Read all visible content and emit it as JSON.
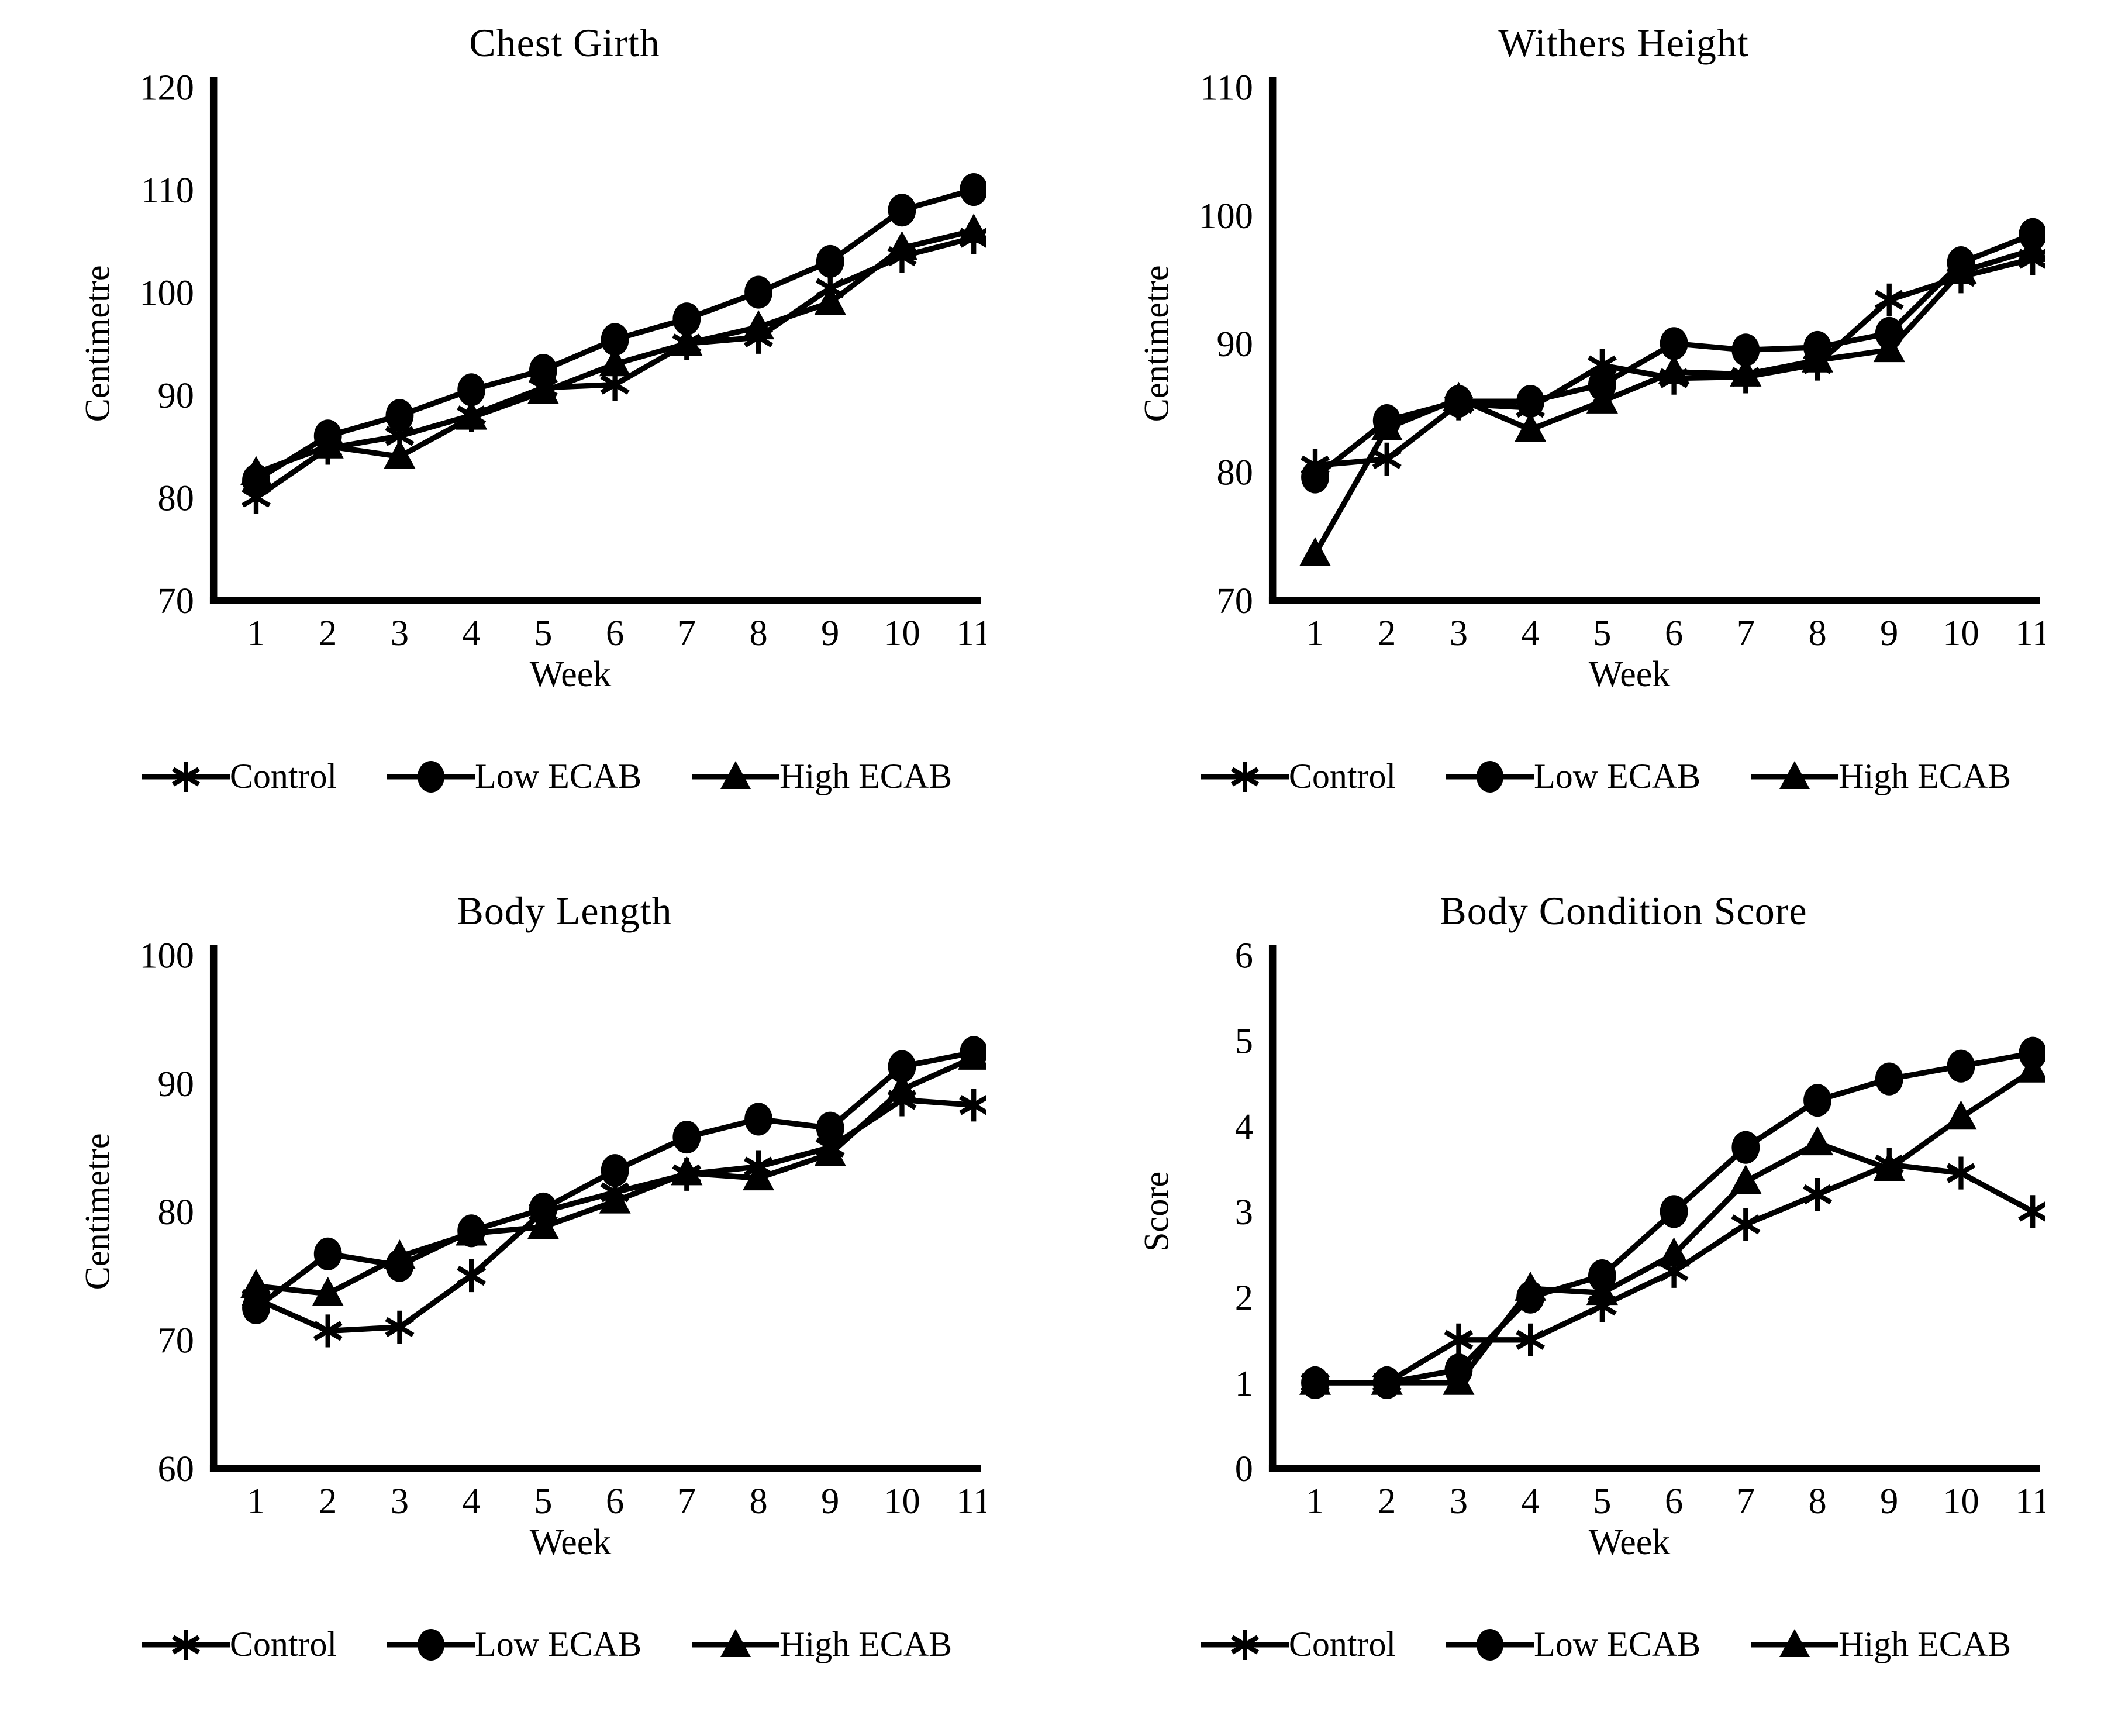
{
  "figure": {
    "background_color": "#ffffff",
    "ink_color": "#000000",
    "layout": "2x2 grid of line charts",
    "week_axis_label": "Week"
  },
  "legend": {
    "items": [
      {
        "label": "Control",
        "marker": "asterisk"
      },
      {
        "label": "Low ECAB",
        "marker": "circle"
      },
      {
        "label": "High ECAB",
        "marker": "triangle"
      }
    ]
  },
  "chart_data": [
    {
      "type": "line",
      "title": "Chest Girth",
      "xlabel": "Week",
      "ylabel": "Centimetre",
      "x": [
        1,
        2,
        3,
        4,
        5,
        6,
        7,
        8,
        9,
        10,
        11
      ],
      "ylim": [
        70,
        120
      ],
      "yticks": [
        70,
        80,
        90,
        100,
        110,
        120
      ],
      "grid": false,
      "legend_position": "bottom",
      "series": [
        {
          "name": "Control",
          "marker": "asterisk",
          "values": [
            80.0,
            84.8,
            86.0,
            88.0,
            90.7,
            91.0,
            95.0,
            95.6,
            100.4,
            103.5,
            105.3
          ]
        },
        {
          "name": "Low ECAB",
          "marker": "circle",
          "values": [
            81.7,
            86.0,
            88.0,
            90.5,
            92.4,
            95.4,
            97.4,
            100.0,
            103.0,
            108.0,
            110.0
          ]
        },
        {
          "name": "High ECAB",
          "marker": "triangle",
          "values": [
            82.4,
            85.0,
            84.0,
            87.8,
            90.3,
            93.0,
            95.0,
            96.6,
            99.0,
            104.3,
            106.0
          ]
        }
      ]
    },
    {
      "type": "line",
      "title": "Withers Height",
      "xlabel": "Week",
      "ylabel": "Centimetre",
      "x": [
        1,
        2,
        3,
        4,
        5,
        6,
        7,
        8,
        9,
        10,
        11
      ],
      "ylim": [
        70,
        110
      ],
      "yticks": [
        70,
        80,
        90,
        100,
        110
      ],
      "grid": false,
      "legend_position": "bottom",
      "series": [
        {
          "name": "Control",
          "marker": "asterisk",
          "values": [
            80.5,
            81.0,
            85.3,
            85.0,
            88.3,
            87.3,
            87.4,
            88.4,
            93.4,
            95.2,
            96.6
          ]
        },
        {
          "name": "Low ECAB",
          "marker": "circle",
          "values": [
            79.6,
            84.0,
            85.5,
            85.5,
            86.8,
            90.0,
            89.5,
            89.7,
            90.8,
            96.3,
            98.5
          ]
        },
        {
          "name": "High ECAB",
          "marker": "triangle",
          "values": [
            73.6,
            83.4,
            85.7,
            83.3,
            85.5,
            87.8,
            87.6,
            88.7,
            89.5,
            95.6,
            97.3
          ]
        }
      ]
    },
    {
      "type": "line",
      "title": "Body Length",
      "xlabel": "Week",
      "ylabel": "Centimetre",
      "x": [
        1,
        2,
        3,
        4,
        5,
        6,
        7,
        8,
        9,
        10,
        11
      ],
      "ylim": [
        60,
        100
      ],
      "yticks": [
        60,
        70,
        80,
        90,
        100
      ],
      "grid": false,
      "legend_position": "bottom",
      "series": [
        {
          "name": "Control",
          "marker": "asterisk",
          "values": [
            73.2,
            70.7,
            71.0,
            75.0,
            80.0,
            81.5,
            82.9,
            83.5,
            85.0,
            88.7,
            88.3
          ]
        },
        {
          "name": "Low ECAB",
          "marker": "circle",
          "values": [
            72.5,
            76.7,
            75.8,
            78.5,
            80.2,
            83.2,
            85.8,
            87.2,
            86.5,
            91.3,
            92.4
          ]
        },
        {
          "name": "High ECAB",
          "marker": "triangle",
          "values": [
            74.2,
            73.6,
            76.5,
            78.3,
            78.8,
            80.8,
            83.0,
            82.6,
            84.5,
            89.5,
            92.0
          ]
        }
      ]
    },
    {
      "type": "line",
      "title": "Body Condition Score",
      "xlabel": "Week",
      "ylabel": "Score",
      "x": [
        1,
        2,
        3,
        4,
        5,
        6,
        7,
        8,
        9,
        10,
        11
      ],
      "ylim": [
        0,
        6
      ],
      "yticks": [
        0,
        1,
        2,
        3,
        4,
        5,
        6
      ],
      "grid": false,
      "legend_position": "bottom",
      "series": [
        {
          "name": "Control",
          "marker": "asterisk",
          "values": [
            1.0,
            1.0,
            1.5,
            1.5,
            1.9,
            2.3,
            2.85,
            3.2,
            3.55,
            3.45,
            3.0
          ]
        },
        {
          "name": "Low ECAB",
          "marker": "circle",
          "values": [
            1.0,
            1.0,
            1.15,
            2.0,
            2.25,
            3.0,
            3.75,
            4.3,
            4.55,
            4.7,
            4.85
          ]
        },
        {
          "name": "High ECAB",
          "marker": "triangle",
          "values": [
            1.0,
            1.0,
            1.0,
            2.1,
            2.05,
            2.5,
            3.35,
            3.8,
            3.5,
            4.1,
            4.65
          ]
        }
      ]
    }
  ]
}
